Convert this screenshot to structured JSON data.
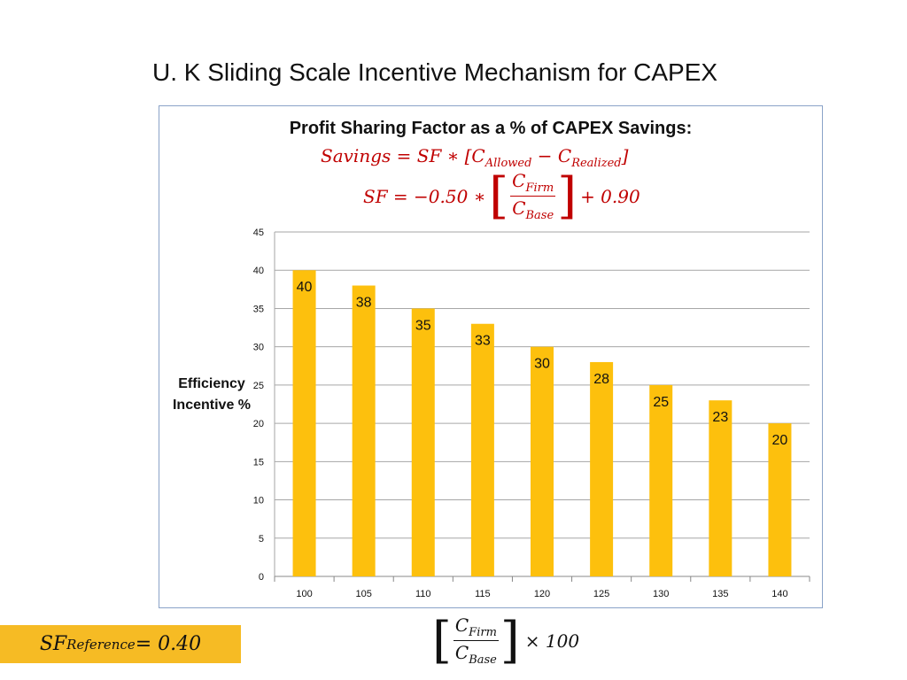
{
  "slide": {
    "title": "U. K Sliding Scale Incentive Mechanism for CAPEX"
  },
  "formula": {
    "heading": "Profit Sharing Factor as a % of CAPEX Savings:",
    "savings_lhs": "Savings = SF ∗ [C",
    "savings_sub1": "Allowed",
    "savings_mid": " − C",
    "savings_sub2": "Realized",
    "savings_end": "]",
    "sf_lhs": "SF = −0.50 ∗",
    "frac_num": "C",
    "frac_num_sub": "Firm",
    "frac_den": "C",
    "frac_den_sub": "Base",
    "sf_rhs": "+ 0.90"
  },
  "reference": {
    "lhs": "SF",
    "sub": "Reference",
    "rhs": " = 0.40"
  },
  "bottom_formula": {
    "num": "C",
    "num_sub": "Firm",
    "den": "C",
    "den_sub": "Base",
    "mult": "× 100"
  },
  "colors": {
    "bar": "#fdc00d",
    "grid": "#a6a6a6",
    "formula": "#c00000",
    "reference_box": "#f6bb24"
  },
  "chart_data": {
    "type": "bar",
    "ylabel": "Efficiency Incentive %",
    "categories": [
      "100",
      "105",
      "110",
      "115",
      "120",
      "125",
      "130",
      "135",
      "140"
    ],
    "values": [
      40,
      38,
      35,
      33,
      30,
      28,
      25,
      23,
      20
    ],
    "data_labels": [
      "40",
      "38",
      "35",
      "33",
      "30",
      "28",
      "25",
      "23",
      "20"
    ],
    "ylim": [
      0,
      45
    ],
    "yticks": [
      0,
      5,
      10,
      15,
      20,
      25,
      30,
      35,
      40,
      45
    ],
    "grid": true,
    "legend": "none"
  }
}
